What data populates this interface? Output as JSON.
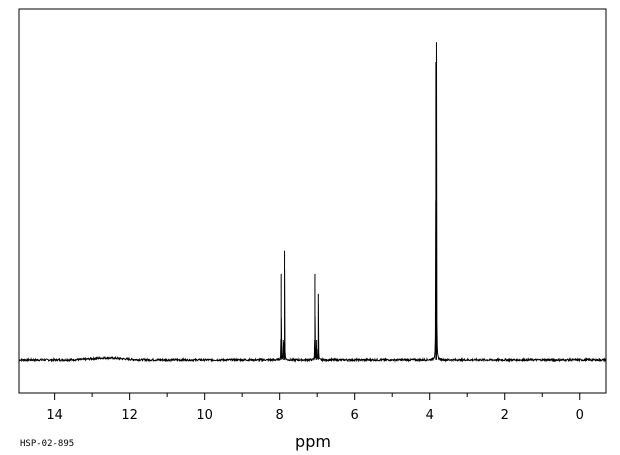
{
  "chart_data": {
    "type": "line",
    "xlabel": "ppm",
    "xlim": [
      14.95,
      -0.7
    ],
    "ylim": [
      -0.1,
      1.06
    ],
    "x_reversed": true,
    "major_ticks": [
      14,
      12,
      10,
      8,
      6,
      4,
      2,
      0
    ],
    "tick_labels": [
      "14",
      "12",
      "10",
      "8",
      "6",
      "4",
      "2",
      "0"
    ],
    "minor_tick_step": 1,
    "baseline": 0,
    "broad_hump": {
      "center": 12.6,
      "width": 0.55,
      "height": 0.006
    },
    "peaks": [
      {
        "ppm": 7.96,
        "height": 0.26
      },
      {
        "ppm": 7.905,
        "height": 0.06
      },
      {
        "ppm": 7.87,
        "height": 0.33
      },
      {
        "ppm": 7.06,
        "height": 0.26
      },
      {
        "ppm": 7.015,
        "height": 0.06
      },
      {
        "ppm": 6.97,
        "height": 0.2
      },
      {
        "ppm": 3.82,
        "height": 0.96
      },
      {
        "ppm": 3.835,
        "height": 0.9
      }
    ],
    "series_color": "#000000",
    "grid": false
  },
  "footer": {
    "sample_code": "HSP-02-895"
  }
}
